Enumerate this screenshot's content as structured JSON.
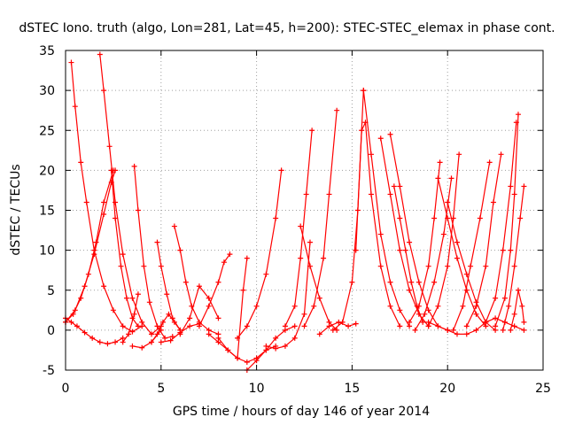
{
  "chart_data": {
    "type": "scatter",
    "title": "dSTEC Iono. truth (algo, Lon=281, Lat=45, h=200): STEC-STEC_elemax in phase cont.",
    "xlabel": "GPS time / hours of day 146 of year 2014",
    "ylabel": "dSTEC  / TECUs",
    "xlim": [
      0,
      25
    ],
    "ylim": [
      -5,
      35
    ],
    "xticks": [
      0,
      5,
      10,
      15,
      20,
      25
    ],
    "yticks": [
      -5,
      0,
      5,
      10,
      15,
      20,
      25,
      30,
      35
    ],
    "grid": true,
    "marker": "plus",
    "color": "#ff0000",
    "series": [
      {
        "x": [
          0.0,
          0.3,
          0.6,
          1.0,
          1.4,
          1.8,
          2.2,
          2.6,
          3.0
        ],
        "y": [
          1.5,
          1.0,
          0.5,
          -0.3,
          -1.0,
          -1.5,
          -1.7,
          -1.5,
          -1.0
        ]
      },
      {
        "x": [
          0.0,
          0.5,
          1.0,
          1.5,
          2.0,
          2.4,
          2.6
        ],
        "y": [
          1.0,
          2.5,
          5.5,
          9.5,
          14.5,
          18.5,
          20.0
        ]
      },
      {
        "x": [
          0.0,
          0.4,
          0.8,
          1.2,
          1.6,
          2.0,
          2.5
        ],
        "y": [
          1.0,
          2.0,
          4.0,
          7.0,
          11.0,
          16.0,
          20.0
        ]
      },
      {
        "x": [
          0.3,
          0.5,
          0.8,
          1.1,
          1.5,
          2.0,
          2.5,
          3.0,
          3.5,
          4.0
        ],
        "y": [
          33.5,
          28.0,
          21.0,
          16.0,
          10.0,
          5.5,
          2.5,
          0.5,
          -0.2,
          0.5
        ]
      },
      {
        "x": [
          1.8,
          2.0,
          2.3,
          2.6,
          3.0,
          3.5,
          4.0,
          4.5,
          5.0
        ],
        "y": [
          34.5,
          30.0,
          23.0,
          16.0,
          9.5,
          4.0,
          1.0,
          -0.5,
          0.5
        ]
      },
      {
        "x": [
          2.4,
          2.6,
          2.9,
          3.2,
          3.5,
          3.8
        ],
        "y": [
          20.0,
          14.0,
          8.0,
          4.0,
          1.5,
          0.5
        ]
      },
      {
        "x": [
          3.6,
          3.8,
          4.1,
          4.4,
          4.8,
          5.2,
          5.6
        ],
        "y": [
          20.5,
          15.0,
          8.0,
          3.5,
          0.5,
          -1.0,
          -0.8
        ]
      },
      {
        "x": [
          3.0,
          3.3,
          3.6,
          3.8
        ],
        "y": [
          -1.5,
          -0.5,
          2.0,
          4.5
        ]
      },
      {
        "x": [
          3.5,
          4.0,
          4.5,
          5.0
        ],
        "y": [
          -2.0,
          -2.2,
          -1.5,
          0.0
        ]
      },
      {
        "x": [
          4.8,
          5.0,
          5.3,
          5.6,
          6.0
        ],
        "y": [
          11.0,
          8.0,
          4.5,
          1.5,
          0.0
        ]
      },
      {
        "x": [
          4.5,
          4.8,
          5.1,
          5.4,
          5.7,
          6.0
        ],
        "y": [
          -1.5,
          -0.5,
          1.0,
          2.0,
          1.0,
          0.0
        ]
      },
      {
        "x": [
          5.7,
          6.0,
          6.3,
          6.6,
          7.0,
          7.5,
          8.0
        ],
        "y": [
          13.0,
          10.0,
          6.0,
          3.0,
          1.0,
          0.0,
          -0.5
        ]
      },
      {
        "x": [
          5.0,
          5.5,
          6.0,
          6.5,
          7.0
        ],
        "y": [
          -1.5,
          -1.3,
          -0.3,
          0.5,
          0.8
        ]
      },
      {
        "x": [
          6.0,
          6.5,
          7.0,
          7.5,
          8.0
        ],
        "y": [
          -0.5,
          1.5,
          5.5,
          4.0,
          1.5
        ]
      },
      {
        "x": [
          7.0,
          7.5,
          8.0,
          8.3,
          8.6
        ],
        "y": [
          0.5,
          3.0,
          6.0,
          8.5,
          9.5
        ]
      },
      {
        "x": [
          8.0,
          8.5,
          9.0,
          9.3,
          9.5
        ],
        "y": [
          -1.0,
          -2.5,
          -3.5,
          5.0,
          9.0
        ]
      },
      {
        "x": [
          7.5,
          8.0,
          8.5,
          9.0,
          9.5,
          10.0,
          10.5,
          11.0
        ],
        "y": [
          -0.5,
          -1.5,
          -2.5,
          -3.5,
          -4.0,
          -3.5,
          -2.5,
          -2.0
        ]
      },
      {
        "x": [
          9.5,
          10.0,
          10.5,
          11.0,
          11.5,
          12.0
        ],
        "y": [
          -5.0,
          -3.8,
          -2.5,
          -1.0,
          0.0,
          0.5
        ]
      },
      {
        "x": [
          9.0,
          9.5,
          10.0,
          10.5,
          11.0,
          11.3
        ],
        "y": [
          -1.0,
          0.5,
          3.0,
          7.0,
          14.0,
          20.0
        ]
      },
      {
        "x": [
          10.5,
          11.0,
          11.5,
          12.0,
          12.5,
          12.8
        ],
        "y": [
          -2.0,
          -2.3,
          -2.0,
          -1.0,
          2.0,
          11.0
        ]
      },
      {
        "x": [
          11.5,
          12.0,
          12.3,
          12.6,
          12.9
        ],
        "y": [
          0.5,
          3.0,
          9.0,
          17.0,
          25.0
        ]
      },
      {
        "x": [
          12.3,
          12.8,
          13.3,
          13.8,
          14.2
        ],
        "y": [
          13.0,
          8.0,
          4.0,
          1.0,
          0.0
        ]
      },
      {
        "x": [
          12.5,
          13.0,
          13.5,
          13.8,
          14.2
        ],
        "y": [
          0.5,
          3.0,
          9.0,
          17.0,
          27.5
        ]
      },
      {
        "x": [
          13.3,
          13.8,
          14.3,
          14.8,
          15.2
        ],
        "y": [
          -0.5,
          0.5,
          1.0,
          0.5,
          0.8
        ]
      },
      {
        "x": [
          14.0,
          14.5,
          15.0,
          15.3,
          15.6
        ],
        "y": [
          0.0,
          1.0,
          6.0,
          15.0,
          30.0
        ]
      },
      {
        "x": [
          15.2,
          15.5,
          15.7,
          16.0,
          16.5,
          17.0,
          17.5
        ],
        "y": [
          10.0,
          25.0,
          26.0,
          17.0,
          8.0,
          3.0,
          0.5
        ]
      },
      {
        "x": [
          15.6,
          16.0,
          16.5,
          17.0,
          17.5,
          18.0
        ],
        "y": [
          30.0,
          22.0,
          12.0,
          6.0,
          2.5,
          0.5
        ]
      },
      {
        "x": [
          16.5,
          17.0,
          17.5,
          18.0,
          18.5,
          19.0
        ],
        "y": [
          24.0,
          17.0,
          10.0,
          5.0,
          2.0,
          0.5
        ]
      },
      {
        "x": [
          17.2,
          17.5,
          17.8,
          18.1,
          18.4,
          18.7
        ],
        "y": [
          18.0,
          14.0,
          10.0,
          6.0,
          3.0,
          1.0
        ]
      },
      {
        "x": [
          17.0,
          17.5,
          18.0,
          18.5,
          19.0,
          19.5,
          20.0
        ],
        "y": [
          24.5,
          18.0,
          11.0,
          6.0,
          2.5,
          0.5,
          0.0
        ]
      },
      {
        "x": [
          18.0,
          18.5,
          19.0,
          19.3,
          19.6
        ],
        "y": [
          1.0,
          3.0,
          8.0,
          14.0,
          21.0
        ]
      },
      {
        "x": [
          18.3,
          18.8,
          19.3,
          19.8,
          20.2
        ],
        "y": [
          0.0,
          2.0,
          6.0,
          12.0,
          19.0
        ]
      },
      {
        "x": [
          19.0,
          19.5,
          20.0,
          20.3,
          20.6
        ],
        "y": [
          0.5,
          3.0,
          8.0,
          14.0,
          22.0
        ]
      },
      {
        "x": [
          19.5,
          20.0,
          20.5,
          21.0,
          21.5,
          22.0
        ],
        "y": [
          19.0,
          14.0,
          9.0,
          5.0,
          2.0,
          0.5
        ]
      },
      {
        "x": [
          20.0,
          20.5,
          21.0,
          21.5,
          22.0,
          22.5
        ],
        "y": [
          16.0,
          11.0,
          7.0,
          3.5,
          1.0,
          0.0
        ]
      },
      {
        "x": [
          20.3,
          20.8,
          21.2,
          21.7,
          22.2
        ],
        "y": [
          0.0,
          3.0,
          8.0,
          14.0,
          21.0
        ]
      },
      {
        "x": [
          21.0,
          21.5,
          22.0,
          22.4,
          22.8
        ],
        "y": [
          0.5,
          3.0,
          8.0,
          16.0,
          22.0
        ]
      },
      {
        "x": [
          22.0,
          22.5,
          22.9,
          23.3,
          23.6
        ],
        "y": [
          1.0,
          4.0,
          10.0,
          18.0,
          26.0
        ]
      },
      {
        "x": [
          22.5,
          23.0,
          23.3,
          23.5,
          23.7
        ],
        "y": [
          0.5,
          4.0,
          10.0,
          17.0,
          27.0
        ]
      },
      {
        "x": [
          22.9,
          23.2,
          23.5,
          23.8,
          24.0
        ],
        "y": [
          0.0,
          3.0,
          8.0,
          14.0,
          18.0
        ]
      },
      {
        "x": [
          23.3,
          23.5,
          23.7,
          23.9,
          24.0
        ],
        "y": [
          0.0,
          2.0,
          5.0,
          3.0,
          1.0
        ]
      },
      {
        "x": [
          19.0,
          19.5,
          20.0,
          20.5,
          21.0,
          21.5,
          22.0,
          22.5,
          23.0,
          23.5,
          24.0
        ],
        "y": [
          1.0,
          0.5,
          0.0,
          -0.5,
          -0.5,
          0.0,
          1.0,
          1.5,
          1.0,
          0.5,
          0.0
        ]
      }
    ]
  }
}
